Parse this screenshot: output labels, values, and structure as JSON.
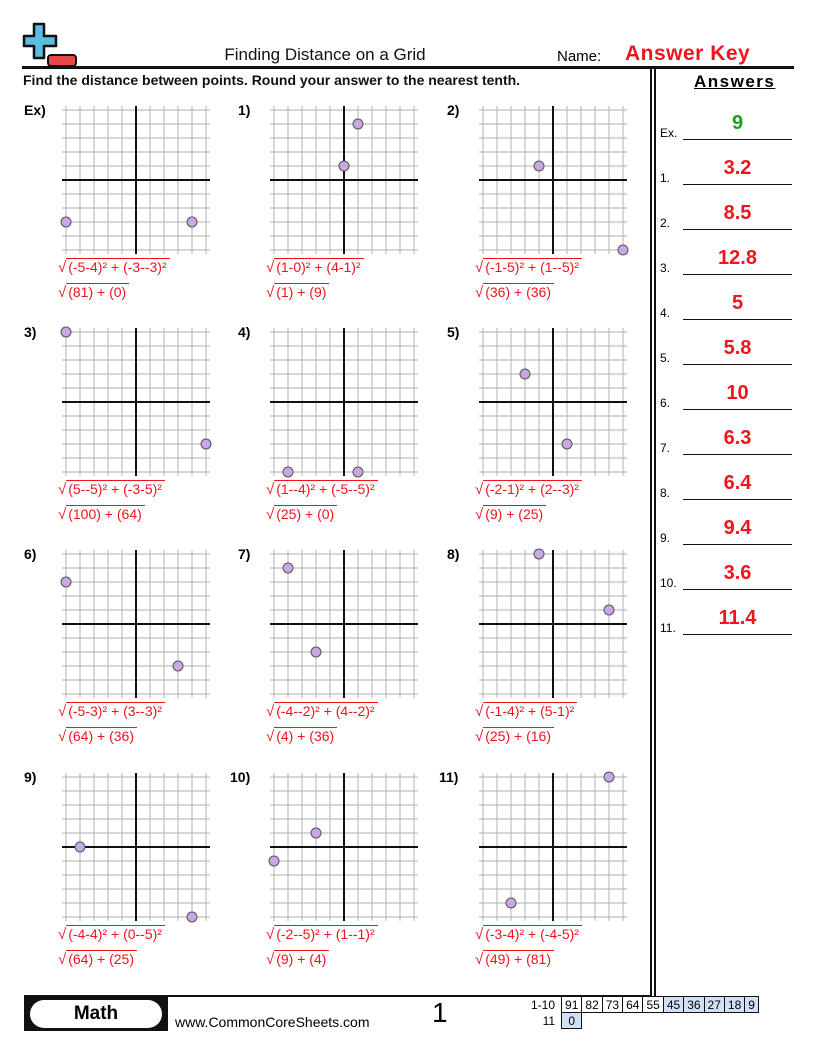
{
  "header": {
    "title": "Finding Distance on a Grid",
    "name_label": "Name:",
    "name_value": "Answer Key",
    "instructions": "Find the distance between points. Round your answer to the nearest tenth."
  },
  "answers": {
    "title": "Answers",
    "items": [
      {
        "label": "Ex.",
        "value": "9",
        "color": "#1aa31a"
      },
      {
        "label": "1.",
        "value": "3.2",
        "color": "#f0141e"
      },
      {
        "label": "2.",
        "value": "8.5",
        "color": "#f0141e"
      },
      {
        "label": "3.",
        "value": "12.8",
        "color": "#f0141e"
      },
      {
        "label": "4.",
        "value": "5",
        "color": "#f0141e"
      },
      {
        "label": "5.",
        "value": "5.8",
        "color": "#f0141e"
      },
      {
        "label": "6.",
        "value": "10",
        "color": "#f0141e"
      },
      {
        "label": "7.",
        "value": "6.3",
        "color": "#f0141e"
      },
      {
        "label": "8.",
        "value": "6.4",
        "color": "#f0141e"
      },
      {
        "label": "9.",
        "value": "9.4",
        "color": "#f0141e"
      },
      {
        "label": "10.",
        "value": "3.6",
        "color": "#f0141e"
      },
      {
        "label": "11.",
        "value": "11.4",
        "color": "#f0141e"
      }
    ]
  },
  "problems": [
    {
      "label": "Ex)",
      "points": [
        [
          -5,
          -3
        ],
        [
          4,
          -3
        ]
      ],
      "formula1": "(-5-4)² + (-3--3)²",
      "formula2": "(81) + (0)"
    },
    {
      "label": "1)",
      "points": [
        [
          1,
          4
        ],
        [
          0,
          1
        ]
      ],
      "formula1": "(1-0)² + (4-1)²",
      "formula2": "(1) + (9)"
    },
    {
      "label": "2)",
      "points": [
        [
          -1,
          1
        ],
        [
          5,
          -5
        ]
      ],
      "formula1": "(-1-5)² + (1--5)²",
      "formula2": "(36) + (36)"
    },
    {
      "label": "3)",
      "points": [
        [
          5,
          -3
        ],
        [
          -5,
          5
        ]
      ],
      "formula1": "(5--5)² + (-3-5)²",
      "formula2": "(100) + (64)"
    },
    {
      "label": "4)",
      "points": [
        [
          1,
          -5
        ],
        [
          -4,
          -5
        ]
      ],
      "formula1": "(1--4)² + (-5--5)²",
      "formula2": "(25) + (0)"
    },
    {
      "label": "5)",
      "points": [
        [
          -2,
          2
        ],
        [
          1,
          -3
        ]
      ],
      "formula1": "(-2-1)² + (2--3)²",
      "formula2": "(9) + (25)"
    },
    {
      "label": "6)",
      "points": [
        [
          -5,
          3
        ],
        [
          3,
          -3
        ]
      ],
      "formula1": "(-5-3)² + (3--3)²",
      "formula2": "(64) + (36)"
    },
    {
      "label": "7)",
      "points": [
        [
          -4,
          4
        ],
        [
          -2,
          -2
        ]
      ],
      "formula1": "(-4--2)² + (4--2)²",
      "formula2": "(4) + (36)"
    },
    {
      "label": "8)",
      "points": [
        [
          -1,
          5
        ],
        [
          4,
          1
        ]
      ],
      "formula1": "(-1-4)² + (5-1)²",
      "formula2": "(25) + (16)"
    },
    {
      "label": "9)",
      "points": [
        [
          -4,
          0
        ],
        [
          4,
          -5
        ]
      ],
      "formula1": "(-4-4)² + (0--5)²",
      "formula2": "(64) + (25)"
    },
    {
      "label": "10)",
      "points": [
        [
          -2,
          1
        ],
        [
          -5,
          -1
        ]
      ],
      "formula1": "(-2--5)² + (1--1)²",
      "formula2": "(9) + (4)"
    },
    {
      "label": "11)",
      "points": [
        [
          -3,
          -4
        ],
        [
          4,
          5
        ]
      ],
      "formula1": "(-3-4)² + (-4-5)²",
      "formula2": "(49) + (81)"
    }
  ],
  "grid": {
    "min": -5,
    "max": 5,
    "point_color": "#c9a6e4",
    "formula_color": "#f0141e"
  },
  "footer": {
    "subject": "Math",
    "website": "www.CommonCoreSheets.com",
    "page": "1",
    "score_rows": [
      {
        "label": "1-10",
        "cells": [
          "91",
          "82",
          "73",
          "64",
          "55",
          "45",
          "36",
          "27",
          "18",
          "9"
        ],
        "highlighted_from": 5
      },
      {
        "label": "11",
        "cells": [
          "0"
        ],
        "highlighted_from": 0
      }
    ],
    "highlight_color": "#cfe0f7"
  }
}
